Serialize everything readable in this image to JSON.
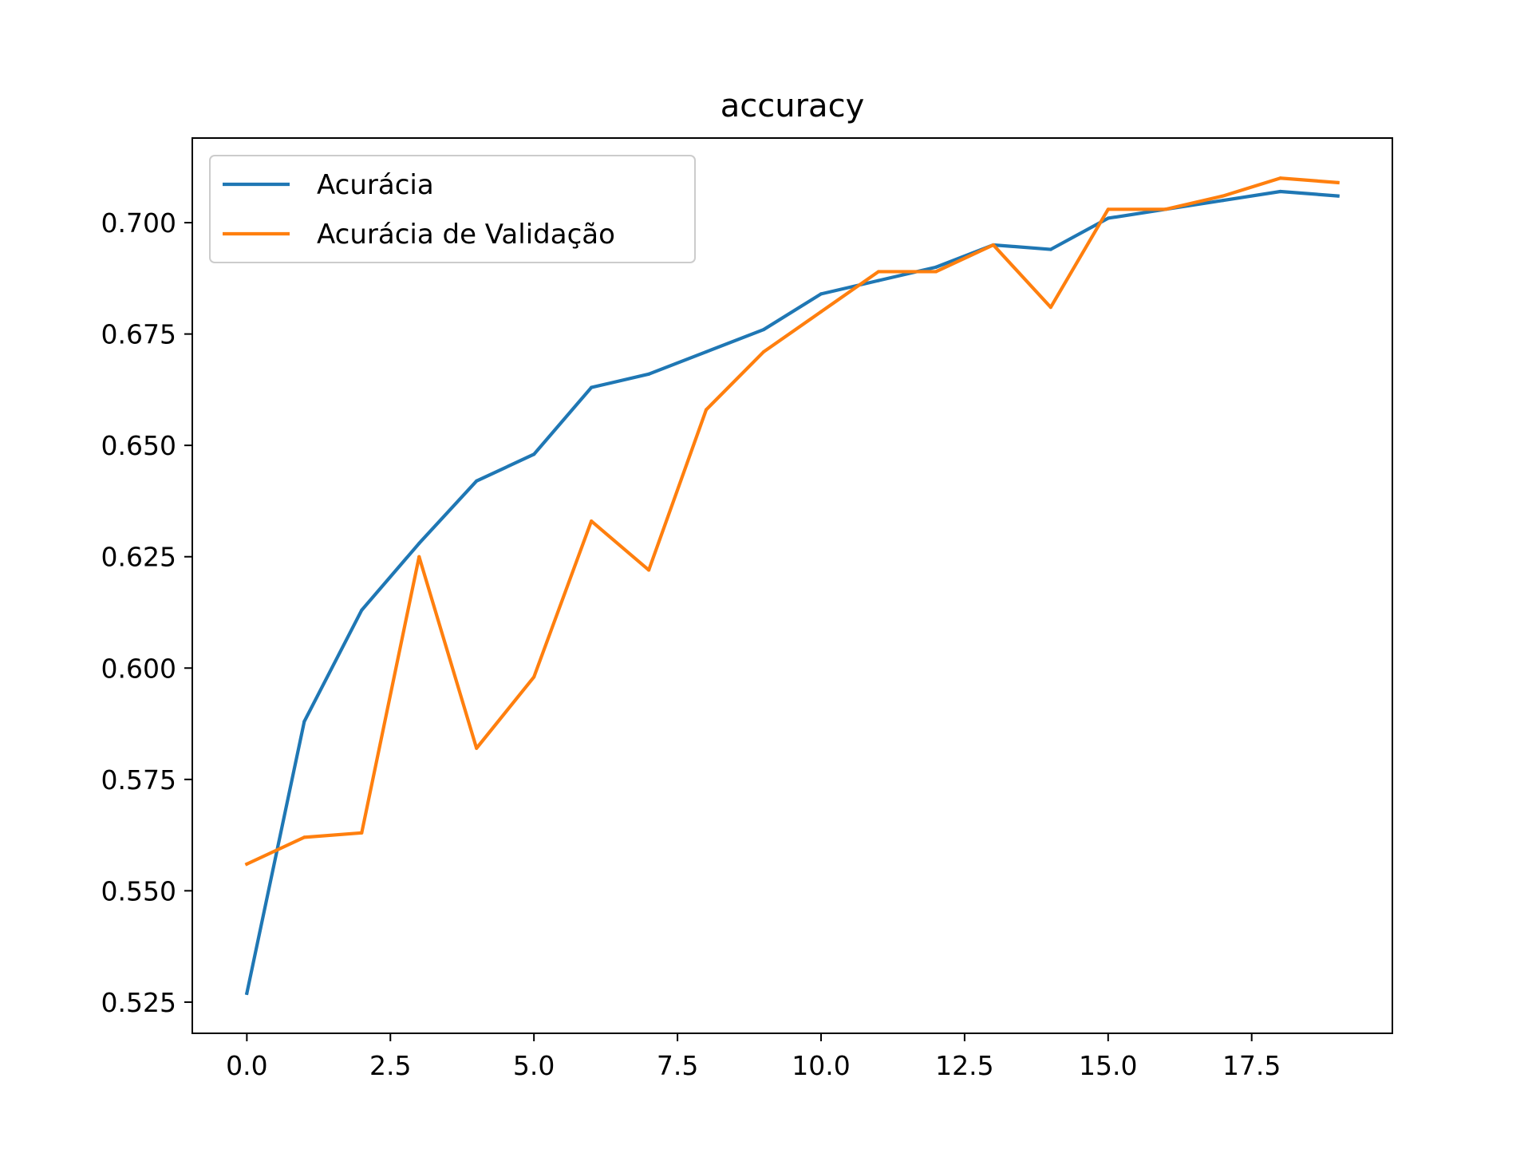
{
  "chart_data": {
    "type": "line",
    "title": "accuracy",
    "xlabel": "",
    "ylabel": "",
    "xlim": [
      -0.95,
      19.95
    ],
    "ylim": [
      0.518,
      0.719
    ],
    "xticks": [
      0.0,
      2.5,
      5.0,
      7.5,
      10.0,
      12.5,
      15.0,
      17.5
    ],
    "xtick_labels": [
      "0.0",
      "2.5",
      "5.0",
      "7.5",
      "10.0",
      "12.5",
      "15.0",
      "17.5"
    ],
    "yticks": [
      0.525,
      0.55,
      0.575,
      0.6,
      0.625,
      0.65,
      0.675,
      0.7
    ],
    "ytick_labels": [
      "0.525",
      "0.550",
      "0.575",
      "0.600",
      "0.625",
      "0.650",
      "0.675",
      "0.700"
    ],
    "grid": false,
    "legend_position": "top-left",
    "x": [
      0,
      1,
      2,
      3,
      4,
      5,
      6,
      7,
      8,
      9,
      10,
      11,
      12,
      13,
      14,
      15,
      16,
      17,
      18,
      19
    ],
    "series": [
      {
        "name": "Acurácia",
        "color": "#1f77b4",
        "values": [
          0.527,
          0.588,
          0.613,
          0.628,
          0.642,
          0.648,
          0.663,
          0.666,
          0.671,
          0.676,
          0.684,
          0.687,
          0.69,
          0.695,
          0.694,
          0.701,
          0.703,
          0.705,
          0.707,
          0.706
        ]
      },
      {
        "name": "Acurácia de Validação",
        "color": "#ff7f0e",
        "values": [
          0.556,
          0.562,
          0.563,
          0.625,
          0.582,
          0.598,
          0.633,
          0.622,
          0.658,
          0.671,
          0.68,
          0.689,
          0.689,
          0.695,
          0.681,
          0.703,
          0.703,
          0.706,
          0.71,
          0.709
        ]
      }
    ]
  }
}
